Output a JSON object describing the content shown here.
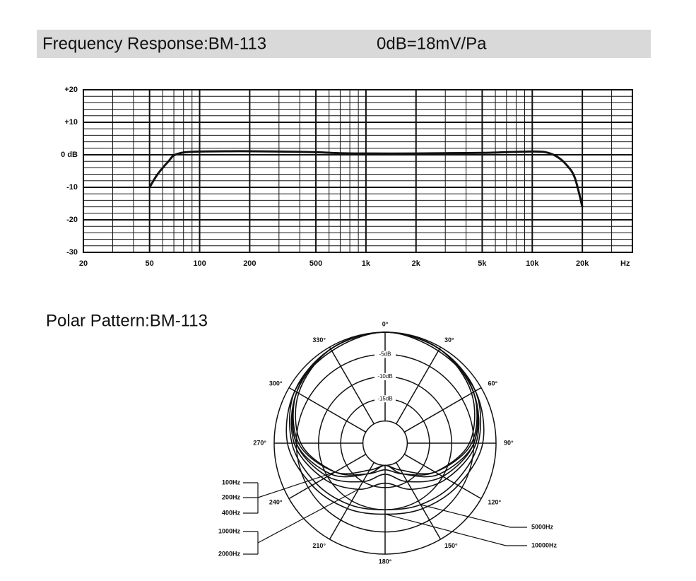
{
  "chart_data": [
    {
      "type": "line",
      "title": "Frequency Response:BM-113",
      "subtitle": "0dB=18mV/Pa",
      "xlabel": "Hz",
      "xscale": "log",
      "xlim": [
        20,
        40000
      ],
      "ylim": [
        -30,
        20
      ],
      "xticks": [
        20,
        50,
        100,
        200,
        500,
        {
          "value": 1000,
          "label": "1k"
        },
        {
          "value": 2000,
          "label": "2k"
        },
        {
          "value": 5000,
          "label": "5k"
        },
        {
          "value": 10000,
          "label": "10k"
        },
        {
          "value": 20000,
          "label": "20k"
        }
      ],
      "yticks": [
        -30,
        -20,
        -10,
        {
          "value": 0,
          "label": "0 dB"
        },
        {
          "value": 10,
          "label": "+10"
        },
        {
          "value": 20,
          "label": "+20"
        }
      ],
      "xminor": [
        30,
        40,
        60,
        70,
        80,
        90,
        300,
        400,
        600,
        700,
        800,
        900,
        3000,
        4000,
        6000,
        7000,
        8000,
        9000,
        30000
      ],
      "yminor": [
        -28,
        -26,
        -24,
        -22,
        -18,
        -16,
        -14,
        -12,
        -8,
        -6,
        -4,
        -2,
        2,
        4,
        6,
        8,
        12,
        14,
        16,
        18
      ],
      "grid": true,
      "color": "#111111",
      "x": [
        50,
        55,
        60,
        65,
        70,
        80,
        100,
        150,
        200,
        300,
        500,
        700,
        1000,
        2000,
        3000,
        5000,
        8000,
        10000,
        12000,
        14000,
        16000,
        18000,
        20000
      ],
      "values": [
        -10,
        -6.5,
        -4,
        -2,
        -0.2,
        0.7,
        1,
        1.1,
        1.1,
        1,
        0.8,
        0.5,
        0.4,
        0.4,
        0.5,
        0.6,
        0.9,
        1,
        0.8,
        -0.5,
        -3,
        -7,
        -16
      ]
    },
    {
      "type": "polar",
      "title": "Polar Pattern:BM-113",
      "theta": [
        0,
        30,
        60,
        90,
        120,
        150,
        180,
        210,
        240,
        270,
        300,
        330
      ],
      "thetaticks": [
        {
          "value": 0,
          "label": "0°"
        },
        {
          "value": 30,
          "label": "30°"
        },
        {
          "value": 60,
          "label": "60°"
        },
        {
          "value": 90,
          "label": "90°"
        },
        {
          "value": 120,
          "label": "120°"
        },
        {
          "value": 150,
          "label": "150°"
        },
        {
          "value": 180,
          "label": "180°"
        },
        {
          "value": 210,
          "label": "210°"
        },
        {
          "value": 240,
          "label": "240°"
        },
        {
          "value": 270,
          "label": "270°"
        },
        {
          "value": 300,
          "label": "300°"
        },
        {
          "value": 330,
          "label": "330°"
        }
      ],
      "rlim": [
        -25,
        0
      ],
      "rticks": [
        {
          "value": -5,
          "label": "-5dB"
        },
        {
          "value": -10,
          "label": "-10dB"
        },
        {
          "value": -15,
          "label": "-15dB"
        }
      ],
      "rgrid": [
        0,
        -20
      ],
      "series": [
        {
          "name": "100Hz",
          "color": "#111111",
          "values": [
            0,
            -0.5,
            -2,
            -5,
            -11,
            -17,
            -20,
            -17,
            -11,
            -5,
            -2,
            -0.5
          ]
        },
        {
          "name": "200Hz",
          "color": "#111111",
          "values": [
            0,
            -0.5,
            -2,
            -5.5,
            -12,
            -18,
            -20,
            -18,
            -12,
            -5.5,
            -2,
            -0.5
          ]
        },
        {
          "name": "400Hz",
          "color": "#111111",
          "values": [
            0,
            -0.5,
            -2.5,
            -6,
            -12,
            -17,
            -19,
            -17,
            -12,
            -6,
            -2.5,
            -0.5
          ]
        },
        {
          "name": "1000Hz",
          "color": "#111111",
          "values": [
            0,
            -0.5,
            -2,
            -5,
            -10,
            -15,
            -18,
            -15,
            -10,
            -5,
            -2,
            -0.5
          ]
        },
        {
          "name": "2000Hz",
          "color": "#111111",
          "values": [
            0,
            -0.5,
            -2,
            -4.5,
            -9,
            -13,
            -16,
            -13,
            -9,
            -4.5,
            -2,
            -0.5
          ]
        },
        {
          "name": "5000Hz",
          "color": "#111111",
          "values": [
            0,
            -0.5,
            -1.5,
            -4,
            -7,
            -9,
            -10,
            -9,
            -7,
            -4,
            -1.5,
            -0.5
          ]
        },
        {
          "name": "10000Hz",
          "color": "#111111",
          "values": [
            0,
            -1,
            -1.5,
            -3,
            -6,
            -8,
            -9,
            -8,
            -6,
            -3,
            -1.5,
            -1
          ]
        }
      ]
    }
  ]
}
